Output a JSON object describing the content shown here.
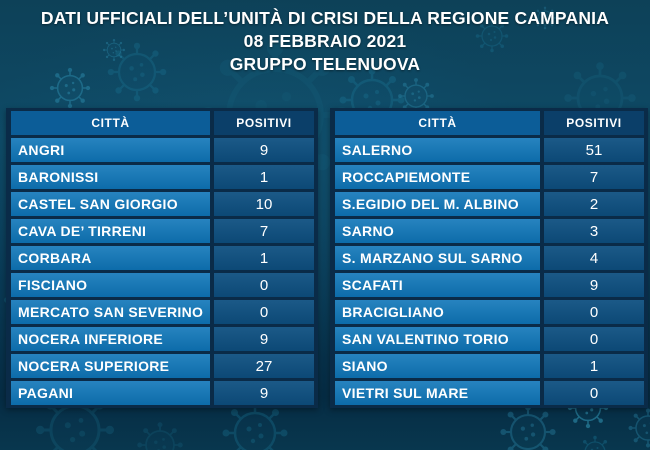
{
  "header": {
    "title_line1": "DATI UFFICIALI DELL’UNITÀ DI CRISI DELLA REGIONE CAMPANIA",
    "title_line2": "08 FEBBRAIO 2021",
    "title_line3": "GRUPPO TELENUOVA"
  },
  "chart_data": [
    {
      "type": "table",
      "title": "DATI UFFICIALI DELL’UNITÀ DI CRISI DELLA REGIONE CAMPANIA - 08 FEBBRAIO 2021 - GRUPPO TELENUOVA",
      "columns": [
        "CITTÀ",
        "POSITIVI"
      ],
      "rows": [
        [
          "ANGRI",
          9
        ],
        [
          "BARONISSI",
          1
        ],
        [
          "CASTEL SAN GIORGIO",
          10
        ],
        [
          "CAVA DE’ TIRRENI",
          7
        ],
        [
          "CORBARA",
          1
        ],
        [
          "FISCIANO",
          0
        ],
        [
          "MERCATO SAN SEVERINO",
          0
        ],
        [
          "NOCERA INFERIORE",
          9
        ],
        [
          "NOCERA SUPERIORE",
          27
        ],
        [
          "PAGANI",
          9
        ]
      ]
    },
    {
      "type": "table",
      "title": "DATI UFFICIALI DELL’UNITÀ DI CRISI DELLA REGIONE CAMPANIA - 08 FEBBRAIO 2021 - GRUPPO TELENUOVA",
      "columns": [
        "CITTÀ",
        "POSITIVI"
      ],
      "rows": [
        [
          "SALERNO",
          51
        ],
        [
          "ROCCAPIEMONTE",
          7
        ],
        [
          "S.EGIDIO DEL M. ALBINO",
          2
        ],
        [
          "SARNO",
          3
        ],
        [
          "S. MARZANO SUL SARNO",
          4
        ],
        [
          "SCAFATI",
          9
        ],
        [
          "BRACIGLIANO",
          0
        ],
        [
          "SAN VALENTINO TORIO",
          0
        ],
        [
          "SIANO",
          1
        ],
        [
          "VIETRI SUL MARE",
          0
        ]
      ]
    }
  ],
  "colors": {
    "background_top": "#0d4158",
    "background_mid": "#0e4a66",
    "background_bottom": "#062c44",
    "panel": "#0a2b48",
    "header_city_bg": "#0c5d98",
    "header_value_bg": "#0b3f69",
    "city_cell_bg": "#0e75b8",
    "value_cell_bg": "#0d4f80",
    "text": "#ffffff",
    "virus_decoration": "#1d7e9f"
  }
}
